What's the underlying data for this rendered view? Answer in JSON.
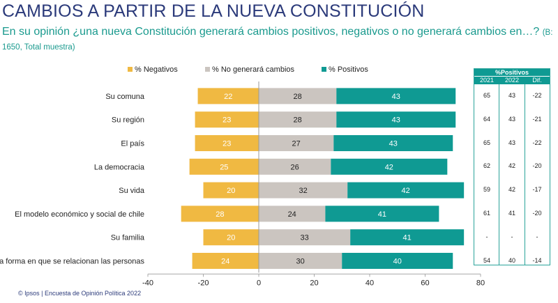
{
  "header": {
    "title": "CAMBIOS A PARTIR DE LA NUEVA CONSTITUCIÓN",
    "question": "En su opinión ¿una nueva Constitución generará cambios positivos, negativos o no generará cambios en…?",
    "base_note": "(B: 1650, Total muestra)"
  },
  "colors": {
    "negativos": "#f0b942",
    "no_cambios": "#cbc5c0",
    "positivos": "#0f9a93",
    "title": "#2b3a7a",
    "subtitle": "#1a9a8e"
  },
  "chart_data": {
    "type": "bar",
    "orientation": "horizontal-diverging-stacked",
    "title": "CAMBIOS A PARTIR DE LA NUEVA CONSTITUCIÓN",
    "categories": [
      "Su comuna",
      "Su región",
      "El país",
      "La democracia",
      "Su vida",
      "El modelo económico y social de chile",
      "Su familia",
      "La forma en que se relacionan las personas"
    ],
    "series": [
      {
        "name": "% Negativos",
        "values": [
          22,
          23,
          23,
          25,
          20,
          28,
          20,
          24
        ],
        "direction": "negative"
      },
      {
        "name": "% No generará cambios",
        "values": [
          28,
          28,
          27,
          26,
          32,
          24,
          33,
          30
        ]
      },
      {
        "name": "% Positivos",
        "values": [
          43,
          43,
          43,
          42,
          42,
          41,
          41,
          40
        ]
      }
    ],
    "xlabel": "",
    "ylabel": "",
    "xlim": [
      -40,
      80
    ],
    "xticks": [
      "-40",
      "-20",
      "0",
      "20",
      "40",
      "60",
      "80"
    ],
    "legend_position": "top",
    "grid": false
  },
  "table": {
    "header": "%Positivos",
    "columns": [
      "2021",
      "2022",
      "Dif."
    ],
    "rows": [
      [
        "65",
        "43",
        "-22"
      ],
      [
        "64",
        "43",
        "-21"
      ],
      [
        "65",
        "43",
        "-22"
      ],
      [
        "62",
        "42",
        "-20"
      ],
      [
        "59",
        "42",
        "-17"
      ],
      [
        "61",
        "41",
        "-20"
      ],
      [
        "-",
        "-",
        "-"
      ],
      [
        "54",
        "40",
        "-14"
      ]
    ]
  },
  "footer": "© Ipsos | Encuesta de Opinión Política 2022"
}
